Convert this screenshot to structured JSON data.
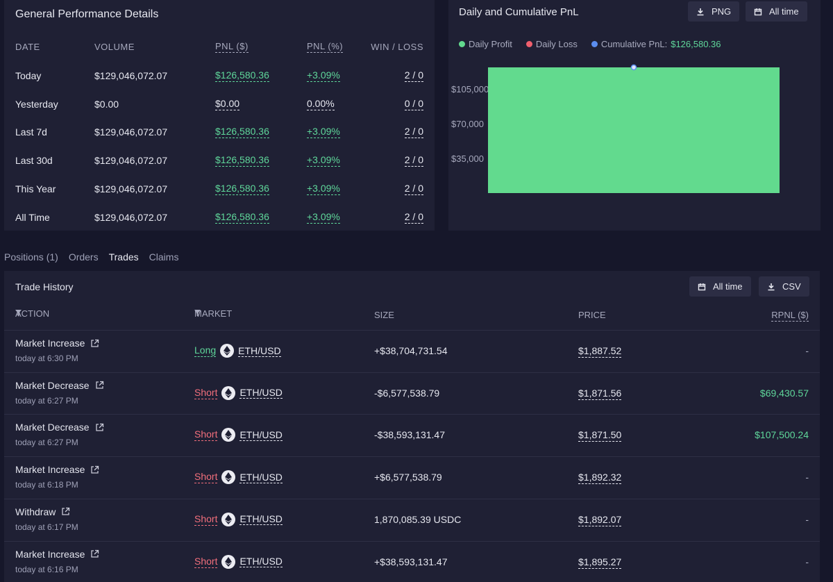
{
  "performance": {
    "title": "General Performance Details",
    "headers": {
      "date": "DATE",
      "volume": "VOLUME",
      "pnl_usd": "PNL ($)",
      "pnl_pct": "PNL (%)",
      "win_loss": "WIN / LOSS"
    },
    "rows": [
      {
        "date": "Today",
        "volume": "$129,046,072.07",
        "pnl": "$126,580.36",
        "pct": "+3.09%",
        "wl": "2 / 0"
      },
      {
        "date": "Yesterday",
        "volume": "$0.00",
        "pnl": "$0.00",
        "pct": "0.00%",
        "wl": "0 / 0"
      },
      {
        "date": "Last 7d",
        "volume": "$129,046,072.07",
        "pnl": "$126,580.36",
        "pct": "+3.09%",
        "wl": "2 / 0"
      },
      {
        "date": "Last 30d",
        "volume": "$129,046,072.07",
        "pnl": "$126,580.36",
        "pct": "+3.09%",
        "wl": "2 / 0"
      },
      {
        "date": "This Year",
        "volume": "$129,046,072.07",
        "pnl": "$126,580.36",
        "pct": "+3.09%",
        "wl": "2 / 0"
      },
      {
        "date": "All Time",
        "volume": "$129,046,072.07",
        "pnl": "$126,580.36",
        "pct": "+3.09%",
        "wl": "2 / 0"
      }
    ]
  },
  "pnl_chart": {
    "title": "Daily and Cumulative PnL",
    "png_label": "PNG",
    "range_label": "All time",
    "legend": {
      "daily_profit": "Daily Profit",
      "daily_loss": "Daily Loss",
      "cumulative_label": "Cumulative PnL:",
      "cumulative_value": "$126,580.36"
    },
    "colors": {
      "profit": "#62da8e",
      "loss": "#ef5f6d",
      "cumulative": "#5b8def"
    }
  },
  "chart_data": {
    "type": "bar",
    "title": "Daily and Cumulative PnL",
    "categories": [
      ""
    ],
    "series": [
      {
        "name": "Daily Profit",
        "values": [
          126580.36
        ]
      },
      {
        "name": "Cumulative PnL",
        "values": [
          126580.36
        ]
      }
    ],
    "yticks": [
      "$105,000",
      "$70,000",
      "$35,000"
    ],
    "ytick_values": [
      105000,
      70000,
      35000
    ],
    "ylim": [
      0,
      126580.36
    ]
  },
  "tabs": [
    "Positions (1)",
    "Orders",
    "Trades",
    "Claims"
  ],
  "active_tab": "Trades",
  "trade_history": {
    "title": "Trade History",
    "range_label": "All time",
    "csv_label": "CSV",
    "headers": {
      "action": "ACTION",
      "market": "MARKET",
      "size": "SIZE",
      "price": "PRICE",
      "rpnl": "RPNL ($)"
    },
    "rows": [
      {
        "action": "Market Increase",
        "time": "today at 6:30 PM",
        "side": "Long",
        "pair": "ETH/USD",
        "size": "+$38,704,731.54",
        "price": "$1,887.52",
        "rpnl": "-"
      },
      {
        "action": "Market Decrease",
        "time": "today at 6:27 PM",
        "side": "Short",
        "pair": "ETH/USD",
        "size": "-$6,577,538.79",
        "price": "$1,871.56",
        "rpnl": "$69,430.57"
      },
      {
        "action": "Market Decrease",
        "time": "today at 6:27 PM",
        "side": "Short",
        "pair": "ETH/USD",
        "size": "-$38,593,131.47",
        "price": "$1,871.50",
        "rpnl": "$107,500.24"
      },
      {
        "action": "Market Increase",
        "time": "today at 6:18 PM",
        "side": "Short",
        "pair": "ETH/USD",
        "size": "+$6,577,538.79",
        "price": "$1,892.32",
        "rpnl": "-"
      },
      {
        "action": "Withdraw",
        "time": "today at 6:17 PM",
        "side": "Short",
        "pair": "ETH/USD",
        "size": "1,870,085.39 USDC",
        "price": "$1,892.07",
        "rpnl": "-"
      },
      {
        "action": "Market Increase",
        "time": "today at 6:16 PM",
        "side": "Short",
        "pair": "ETH/USD",
        "size": "+$38,593,131.47",
        "price": "$1,895.27",
        "rpnl": "-"
      }
    ]
  }
}
